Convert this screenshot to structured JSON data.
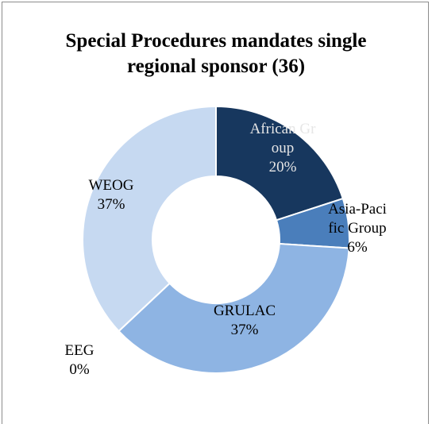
{
  "chart_data": {
    "type": "donut",
    "title": "Special Procedures mandates single regional sponsor (36)",
    "categories": [
      "African Group",
      "Asia-Pacific Group",
      "GRULAC",
      "EEG",
      "WEOG"
    ],
    "values": [
      20,
      6,
      37,
      0,
      37
    ],
    "value_labels": [
      "20%",
      "6%",
      "37%",
      "0%",
      "37%"
    ],
    "colors": [
      "#17375e",
      "#4a7ebb",
      "#8eb4e3",
      "#b9cde5",
      "#c6d9f1"
    ]
  }
}
